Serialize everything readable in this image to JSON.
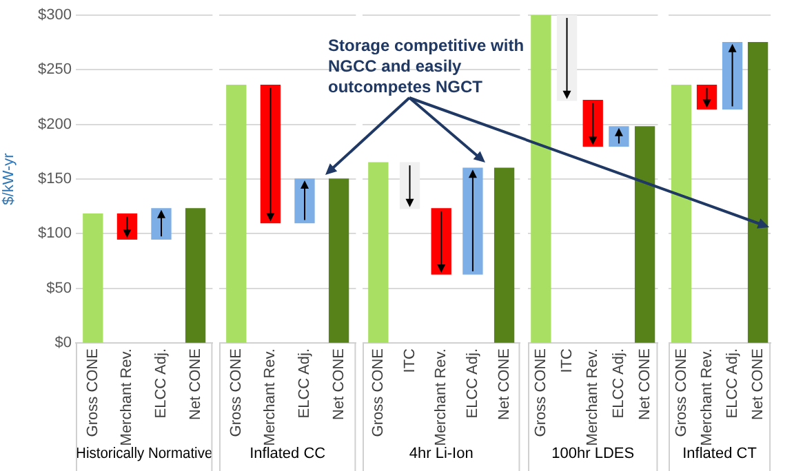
{
  "chart_data": [
    {
      "type": "bar",
      "ylabel": "$/kW-yr",
      "xlabel": "Historically Normative",
      "categories": [
        "Gross CONE",
        "Merchant Rev.",
        "ELCC Adj.",
        "Net CONE"
      ],
      "values": [
        118,
        -23,
        28,
        123
      ],
      "base": [
        0,
        118,
        95,
        0
      ],
      "colors": [
        "#a9e064",
        "#ff0000",
        "#7eaee6",
        "#568219"
      ],
      "ylim": [
        0,
        300
      ],
      "yticks": [
        {
          "value": 0,
          "label": "$0"
        },
        {
          "value": 50,
          "label": "$50"
        },
        {
          "value": 100,
          "label": "$100"
        },
        {
          "value": 150,
          "label": "$150"
        },
        {
          "value": 200,
          "label": "$200"
        },
        {
          "value": 250,
          "label": "$250"
        },
        {
          "value": 300,
          "label": "$300"
        }
      ],
      "grid": "y",
      "legend": false
    },
    {
      "type": "bar",
      "xlabel": "Inflated CC",
      "categories": [
        "Gross CONE",
        "Merchant Rev.",
        "ELCC Adj.",
        "Net CONE"
      ],
      "values": [
        236,
        -126,
        40,
        150
      ],
      "base": [
        0,
        236,
        110,
        0
      ],
      "colors": [
        "#a9e064",
        "#ff0000",
        "#7eaee6",
        "#568219"
      ],
      "ylim": [
        0,
        300
      ],
      "yticks": [
        {
          "value": 0,
          "label": null
        },
        {
          "value": 50,
          "label": null
        },
        {
          "value": 100,
          "label": null
        },
        {
          "value": 150,
          "label": null
        },
        {
          "value": 200,
          "label": null
        },
        {
          "value": 250,
          "label": null
        },
        {
          "value": 300,
          "label": null
        }
      ],
      "grid": "y",
      "legend": false,
      "tick_labels": "x",
      "annotations": [
        "Storage competitive with NGCC and easily outcompetes NGCT"
      ]
    },
    {
      "type": "bar",
      "xlabel": "4hr Li-Ion",
      "categories": [
        "Gross CONE",
        "ITC",
        "Merchant Rev.",
        "ELCC Adj.",
        "Net CONE"
      ],
      "values": [
        165,
        -42,
        -60,
        97,
        160
      ],
      "base": [
        0,
        165,
        123,
        63,
        0
      ],
      "colors": [
        "#a9e064",
        "#f0f0f0",
        "#ff0000",
        "#7eaee6",
        "#568219"
      ],
      "ylim": [
        0,
        300
      ],
      "yticks": [
        {
          "value": 0,
          "label": null
        },
        {
          "value": 50,
          "label": null
        },
        {
          "value": 100,
          "label": null
        },
        {
          "value": 150,
          "label": null
        },
        {
          "value": 200,
          "label": null
        },
        {
          "value": 250,
          "label": null
        },
        {
          "value": 300,
          "label": null
        }
      ],
      "grid": "y",
      "legend": false,
      "tick_labels": "x"
    },
    {
      "type": "bar",
      "xlabel": "100hr LDES",
      "categories": [
        "Gross CONE",
        "ITC",
        "Merchant Rev.",
        "ELCC Adj.",
        "Net CONE"
      ],
      "values": [
        300,
        -78,
        -42,
        18,
        198
      ],
      "base": [
        0,
        300,
        222,
        180,
        0
      ],
      "colors": [
        "#a9e064",
        "#f0f0f0",
        "#ff0000",
        "#7eaee6",
        "#568219"
      ],
      "ylim": [
        0,
        300
      ],
      "yticks": [
        {
          "value": 0,
          "label": null
        },
        {
          "value": 50,
          "label": null
        },
        {
          "value": 100,
          "label": null
        },
        {
          "value": 150,
          "label": null
        },
        {
          "value": 200,
          "label": null
        },
        {
          "value": 250,
          "label": null
        },
        {
          "value": 300,
          "label": null
        }
      ],
      "grid": "y",
      "legend": false,
      "tick_labels": "x"
    },
    {
      "type": "bar",
      "xlabel": "Inflated CT",
      "categories": [
        "Gross CONE",
        "Merchant Rev.",
        "ELCC Adj.",
        "Net CONE"
      ],
      "values": [
        236,
        -22,
        61,
        275
      ],
      "base": [
        0,
        236,
        214,
        0
      ],
      "colors": [
        "#a9e064",
        "#ff0000",
        "#7eaee6",
        "#568219"
      ],
      "ylim": [
        0,
        300
      ],
      "yticks": [
        {
          "value": 0,
          "label": null
        },
        {
          "value": 50,
          "label": null
        },
        {
          "value": 100,
          "label": null
        },
        {
          "value": 150,
          "label": null
        },
        {
          "value": 200,
          "label": null
        },
        {
          "value": 250,
          "label": null
        },
        {
          "value": 300,
          "label": null
        }
      ],
      "grid": "y",
      "legend": false,
      "tick_labels": "x"
    }
  ]
}
